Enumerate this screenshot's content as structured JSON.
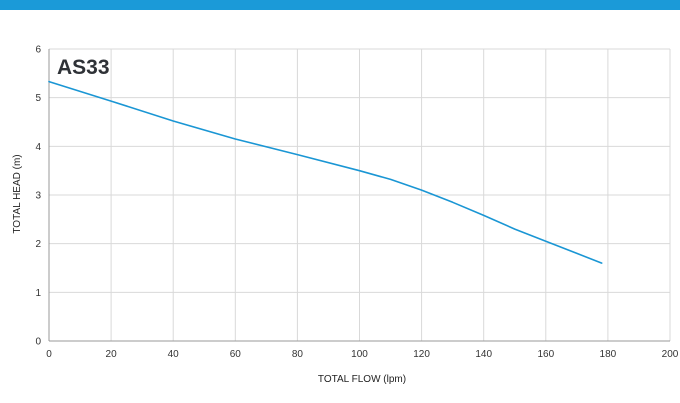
{
  "colors": {
    "banner": "#1b9ad8",
    "series": "#1a96d4",
    "grid": "#d9d9d9",
    "axis": "#999999"
  },
  "chart_data": {
    "type": "line",
    "title": "AS33",
    "xlabel": "TOTAL FLOW (lpm)",
    "ylabel": "TOTAL HEAD (m)",
    "xlim": [
      0,
      200
    ],
    "ylim": [
      0,
      6
    ],
    "x_ticks": [
      0,
      20,
      40,
      60,
      80,
      100,
      120,
      140,
      160,
      180,
      200
    ],
    "y_ticks": [
      0,
      1,
      2,
      3,
      4,
      5,
      6
    ],
    "grid": true,
    "legend": "none",
    "series": [
      {
        "x": [
          0,
          20,
          40,
          60,
          80,
          100,
          110,
          120,
          130,
          140,
          150,
          160,
          170,
          178
        ],
        "y": [
          5.33,
          4.93,
          4.52,
          4.15,
          3.83,
          3.5,
          3.32,
          3.1,
          2.85,
          2.58,
          2.3,
          2.05,
          1.8,
          1.6
        ]
      }
    ]
  }
}
